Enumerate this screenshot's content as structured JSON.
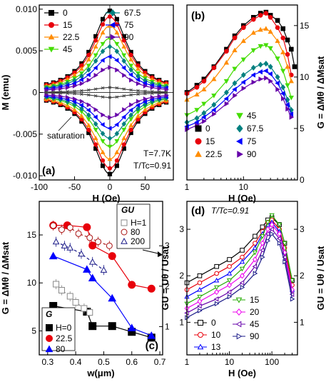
{
  "chart_data": [
    {
      "panel": "(a)",
      "type": "line",
      "xlabel": "H (Oe)",
      "ylabel": "M (emu)",
      "xlim": [
        -100,
        90
      ],
      "ylim": [
        -0.0105,
        0.0105
      ],
      "xticks": [
        -100,
        -50,
        0,
        50
      ],
      "yticks": [
        -0.01,
        -0.005,
        0,
        0.005,
        0.01
      ],
      "ytick_labels": [
        "-0.010",
        "-0.005",
        "0",
        "0.005",
        "0.010"
      ],
      "annotations": [
        "saturation",
        "T=7.7K",
        "T/Tc=0.91"
      ],
      "series": [
        {
          "name": "0",
          "color": "#000000",
          "marker": "square",
          "peak": 0.0098
        },
        {
          "name": "15",
          "color": "#e8000b",
          "marker": "circle",
          "peak": 0.0091
        },
        {
          "name": "22.5",
          "color": "#ff8c00",
          "marker": "triangle-up",
          "peak": 0.008
        },
        {
          "name": "45",
          "color": "#44dd00",
          "marker": "triangle-down",
          "peak": 0.0065
        },
        {
          "name": "67.5",
          "color": "#008080",
          "marker": "diamond",
          "peak": 0.0055
        },
        {
          "name": "75",
          "color": "#0000ff",
          "marker": "triangle-left",
          "peak": 0.0043
        },
        {
          "name": "90",
          "color": "#6600aa",
          "marker": "triangle-right",
          "peak": 0.003
        },
        {
          "name": "",
          "color": "#444444",
          "marker": "x",
          "peak": 0.0006
        }
      ]
    },
    {
      "panel": "(b)",
      "type": "line",
      "xscale": "log",
      "xlabel": "H (Oe)",
      "ylabel": "G = ΔMθ / ΔMsat",
      "xlim": [
        1,
        90
      ],
      "ylim": [
        0,
        17
      ],
      "xticks": [
        1,
        10
      ],
      "yticks": [
        0,
        5,
        10,
        15
      ],
      "series": [
        {
          "name": "0",
          "color": "#000000",
          "marker": "square",
          "x": [
            1,
            1.5,
            2,
            3,
            5,
            7,
            10,
            15,
            20,
            25,
            30,
            40,
            50,
            60,
            70,
            80
          ],
          "y": [
            8.5,
            9.2,
            9.8,
            11.0,
            12.7,
            14.0,
            15.0,
            15.8,
            16.2,
            16.3,
            16.0,
            15.5,
            14.7,
            13.6,
            12.7,
            11.0
          ]
        },
        {
          "name": "15",
          "color": "#e8000b",
          "marker": "circle",
          "x": [
            1,
            1.5,
            2,
            3,
            5,
            7,
            10,
            15,
            20,
            25,
            30,
            40,
            50,
            60,
            70
          ],
          "y": [
            8.4,
            9.0,
            9.6,
            10.9,
            12.5,
            13.8,
            14.8,
            15.6,
            16.0,
            16.2,
            15.8,
            14.8,
            13.8,
            12.2,
            10.2
          ]
        },
        {
          "name": "22.5",
          "color": "#ff8c00",
          "marker": "triangle-up",
          "x": [
            1,
            1.5,
            2,
            3,
            5,
            7,
            10,
            15,
            20,
            25,
            30,
            40,
            50,
            60,
            70
          ],
          "y": [
            7.8,
            8.3,
            8.8,
            9.8,
            11.4,
            12.6,
            13.5,
            14.3,
            14.6,
            14.7,
            14.4,
            13.5,
            12.4,
            11.0,
            9.6
          ]
        },
        {
          "name": "45",
          "color": "#44dd00",
          "marker": "triangle-down",
          "x": [
            1,
            1.5,
            2,
            3,
            5,
            7,
            10,
            15,
            20,
            25,
            30,
            40,
            50,
            60,
            70
          ],
          "y": [
            6.3,
            6.8,
            7.4,
            8.2,
            9.6,
            10.8,
            11.7,
            12.6,
            13.0,
            13.1,
            12.8,
            11.8,
            10.6,
            9.2,
            8.0
          ]
        },
        {
          "name": "67.5",
          "color": "#008080",
          "marker": "diamond",
          "x": [
            1,
            1.5,
            2,
            3,
            5,
            7,
            10,
            15,
            20,
            25,
            30,
            40,
            50,
            60,
            70
          ],
          "y": [
            5.6,
            6.0,
            6.5,
            7.3,
            8.5,
            9.4,
            10.2,
            10.9,
            11.2,
            11.3,
            11.0,
            10.0,
            9.0,
            7.8,
            6.8
          ]
        },
        {
          "name": "75",
          "color": "#0000ff",
          "marker": "triangle-left",
          "x": [
            1,
            1.5,
            2,
            3,
            5,
            7,
            10,
            15,
            20,
            25,
            30,
            40,
            50,
            60,
            70
          ],
          "y": [
            5.2,
            5.6,
            6.1,
            6.8,
            7.9,
            8.8,
            9.5,
            10.2,
            10.5,
            10.6,
            10.3,
            9.4,
            8.4,
            7.3,
            6.4
          ]
        },
        {
          "name": "90",
          "color": "#6600aa",
          "marker": "triangle-right",
          "x": [
            1,
            1.5,
            2,
            3,
            5,
            7,
            10,
            15,
            20,
            25,
            30,
            40,
            50,
            60,
            70
          ],
          "y": [
            4.9,
            5.3,
            5.7,
            6.4,
            7.4,
            8.2,
            8.9,
            9.5,
            9.8,
            9.9,
            9.6,
            8.8,
            7.9,
            6.9,
            6.1
          ]
        }
      ]
    },
    {
      "panel": "(c)",
      "type": "scatter",
      "xlabel": "w(μm)",
      "ylabel": "G = ΔMθ / ΔMsat",
      "ylabel_right": "GU = Uθ / Usat",
      "xlim": [
        0.27,
        0.71
      ],
      "ylim": [
        2.5,
        18.5
      ],
      "ylim_right": [
        0.3,
        4.1
      ],
      "xticks": [
        0.3,
        0.4,
        0.5,
        0.6,
        0.7
      ],
      "yticks": [
        5,
        10,
        15
      ],
      "yticks_right": [
        1,
        2,
        3
      ],
      "legend_left_title": "G",
      "legend_right_title": "GU",
      "series": [
        {
          "name": "H=0",
          "axis": "left",
          "color": "#000000",
          "marker": "square",
          "filled": true,
          "x": [
            0.32,
            0.44,
            0.46,
            0.53,
            0.6,
            0.67
          ],
          "y": [
            7.6,
            7.0,
            5.5,
            5.5,
            4.9,
            4.3
          ]
        },
        {
          "name": "22.5",
          "axis": "left",
          "color": "#e8000b",
          "marker": "circle",
          "filled": true,
          "x": [
            0.32,
            0.37,
            0.44,
            0.46,
            0.53,
            0.6,
            0.67
          ],
          "y": [
            16.0,
            16.0,
            15.8,
            13.9,
            12.8,
            9.8,
            9.4
          ]
        },
        {
          "name": "80",
          "axis": "left",
          "color": "#0000ff",
          "marker": "triangle-up",
          "filled": true,
          "x": [
            0.32,
            0.44,
            0.46,
            0.53,
            0.6,
            0.67
          ],
          "y": [
            12.8,
            11.4,
            10.5,
            8.4,
            5.3,
            4.5
          ]
        },
        {
          "name": "H=1",
          "axis": "right",
          "color": "#888888",
          "marker": "square",
          "filled": false,
          "x": [
            0.33,
            0.35,
            0.38,
            0.4,
            0.43,
            0.45
          ],
          "y": [
            2.05,
            1.9,
            1.75,
            1.6,
            1.45,
            1.35
          ]
        },
        {
          "name": "80",
          "axis": "right",
          "color": "#aa1111",
          "marker": "circle",
          "filled": false,
          "x": [
            0.32,
            0.35,
            0.38,
            0.41,
            0.45,
            0.48,
            0.52
          ],
          "y": [
            3.5,
            3.4,
            3.45,
            3.3,
            3.2,
            3.1,
            3.0
          ]
        },
        {
          "name": "200",
          "axis": "right",
          "color": "#1a1a88",
          "marker": "triangle-up",
          "filled": false,
          "x": [
            0.33,
            0.36,
            0.38,
            0.42,
            0.46,
            0.5
          ],
          "y": [
            3.1,
            3.0,
            2.95,
            2.8,
            2.6,
            2.4
          ]
        }
      ]
    },
    {
      "panel": "(d)",
      "type": "line",
      "xscale": "log",
      "xlabel": "H (Oe)",
      "ylabel": "GU = Uθ / Usat",
      "annotation": "T/Tc=0.91",
      "xlim": [
        1,
        400
      ],
      "ylim": [
        0.3,
        3.6
      ],
      "xticks": [
        1,
        10,
        100
      ],
      "yticks": [
        1,
        2,
        3
      ],
      "series": [
        {
          "name": "0",
          "color": "#000000",
          "marker": "square-open",
          "x": [
            1,
            2,
            5,
            10,
            20,
            40,
            60,
            80,
            100,
            150,
            200,
            300
          ],
          "y": [
            1.85,
            2.0,
            2.2,
            2.35,
            2.55,
            2.85,
            3.05,
            3.2,
            3.25,
            3.1,
            2.7,
            1.9
          ]
        },
        {
          "name": "10",
          "color": "#e8000b",
          "marker": "circle-open",
          "x": [
            1,
            2,
            5,
            10,
            20,
            40,
            60,
            80,
            100,
            150,
            200,
            300
          ],
          "y": [
            1.7,
            1.85,
            2.05,
            2.2,
            2.4,
            2.7,
            2.95,
            3.15,
            3.2,
            3.0,
            2.6,
            1.8
          ]
        },
        {
          "name": "13",
          "color": "#0000ff",
          "marker": "triangle-up-open",
          "x": [
            1,
            2,
            5,
            10,
            20,
            40,
            60,
            80,
            100,
            150,
            200,
            300
          ],
          "y": [
            1.55,
            1.7,
            1.9,
            2.05,
            2.3,
            2.6,
            2.9,
            3.1,
            3.15,
            2.95,
            2.5,
            1.7
          ]
        },
        {
          "name": "15",
          "color": "#22aa00",
          "marker": "triangle-down-open",
          "x": [
            1,
            2,
            5,
            10,
            20,
            40,
            60,
            80,
            100,
            150,
            200,
            300
          ],
          "y": [
            1.4,
            1.55,
            1.75,
            1.9,
            2.15,
            2.5,
            2.85,
            3.15,
            3.3,
            3.1,
            2.7,
            1.9
          ]
        },
        {
          "name": "20",
          "color": "#ee00ee",
          "marker": "diamond-open",
          "x": [
            1,
            2,
            5,
            10,
            20,
            40,
            60,
            80,
            100,
            150,
            200,
            300
          ],
          "y": [
            1.3,
            1.45,
            1.65,
            1.8,
            2.0,
            2.35,
            2.7,
            3.0,
            3.1,
            2.9,
            2.5,
            1.7
          ]
        },
        {
          "name": "45",
          "color": "#6600aa",
          "marker": "triangle-left-open",
          "x": [
            1,
            2,
            5,
            10,
            20,
            40,
            60,
            80,
            100,
            150,
            200,
            300
          ],
          "y": [
            1.2,
            1.35,
            1.5,
            1.65,
            1.85,
            2.2,
            2.55,
            2.9,
            3.0,
            2.8,
            2.4,
            1.6
          ]
        },
        {
          "name": "90",
          "color": "#1a1a88",
          "marker": "triangle-right-open",
          "x": [
            1,
            2,
            5,
            10,
            20,
            40,
            60,
            80,
            100,
            150,
            200,
            300
          ],
          "y": [
            1.1,
            1.25,
            1.4,
            1.55,
            1.75,
            2.05,
            2.4,
            2.75,
            2.9,
            2.7,
            2.3,
            1.5
          ]
        }
      ]
    }
  ]
}
